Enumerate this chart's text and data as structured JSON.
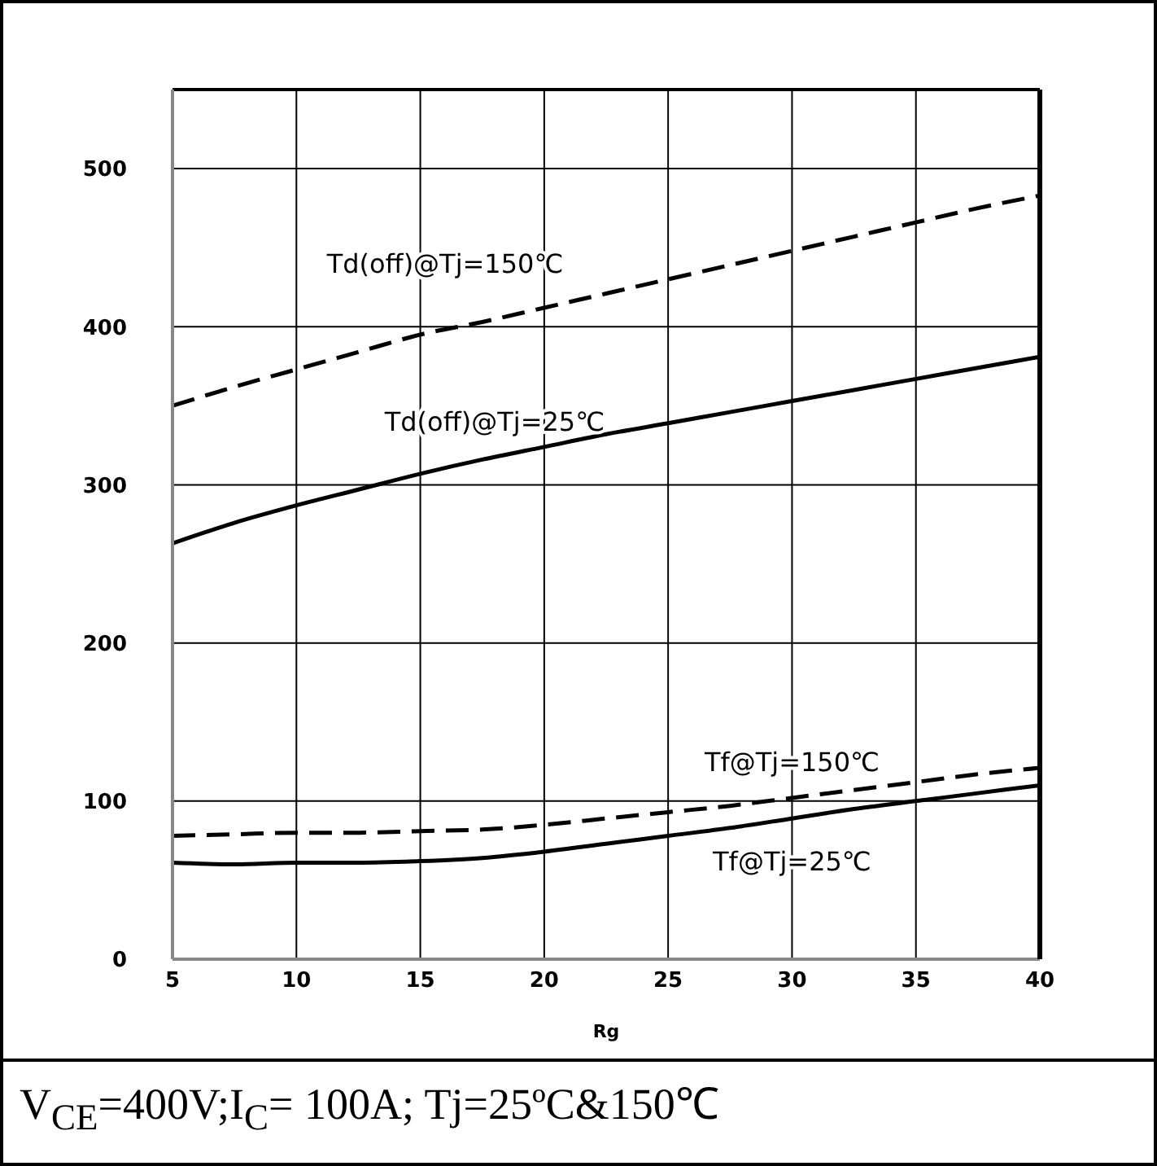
{
  "chart_data": {
    "type": "line",
    "xlabel": "Rg",
    "x": [
      5,
      7.5,
      10,
      12.5,
      15,
      17.5,
      20,
      22.5,
      25,
      27.5,
      30,
      32.5,
      35,
      37.5,
      40
    ],
    "series": [
      {
        "name": "Td(off)@Tj=150℃",
        "color": "#000000",
        "line_style": "dashed",
        "values": [
          350,
          362,
          373,
          384,
          395,
          403,
          412,
          421,
          430,
          439,
          448,
          457,
          466,
          475,
          483
        ]
      },
      {
        "name": "Td(off)@Tj=25℃",
        "color": "#000000",
        "line_style": "solid",
        "values": [
          263,
          276,
          287,
          297,
          307,
          316,
          324,
          332,
          339,
          346,
          353,
          360,
          367,
          374,
          381
        ]
      },
      {
        "name": "Tf@Tj=150℃",
        "color": "#000000",
        "line_style": "dashed",
        "values": [
          78,
          79,
          80,
          80,
          81,
          82,
          85,
          89,
          93,
          97,
          102,
          107,
          112,
          117,
          121
        ]
      },
      {
        "name": "Tf@Tj=25℃",
        "color": "#000000",
        "line_style": "solid",
        "values": [
          61,
          60,
          61,
          61,
          62,
          64,
          68,
          73,
          78,
          83,
          89,
          95,
          100,
          105,
          110
        ]
      }
    ],
    "xlim": [
      5,
      40
    ],
    "xticks": [
      5,
      10,
      15,
      20,
      25,
      30,
      35,
      40
    ],
    "ylim": [
      0,
      550
    ],
    "yticks": [
      0,
      100,
      200,
      300,
      400,
      500
    ],
    "grid": true,
    "legend": false,
    "marker": "none",
    "annotations": [
      "V$_{CE}$=400V;I$_{C}$= 100A; Tj=25ºC&150℃"
    ]
  }
}
